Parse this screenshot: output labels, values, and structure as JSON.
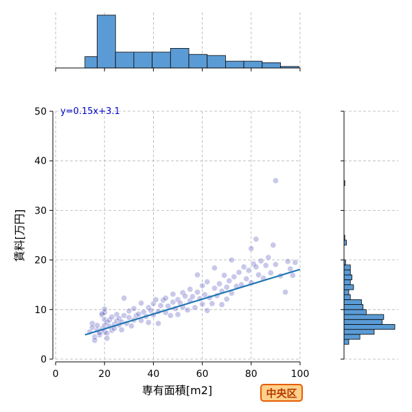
{
  "chart_data": {
    "type": "scatter",
    "xlabel": "専有面積[m2]",
    "ylabel": "賃料[万円]",
    "xlim": [
      0,
      100
    ],
    "ylim": [
      0,
      50
    ],
    "xticks": [
      0,
      20,
      40,
      60,
      80,
      100
    ],
    "yticks": [
      0,
      10,
      20,
      30,
      40,
      50
    ],
    "grid": true,
    "annotation": "y=0.15x+3.1",
    "annotation_color": "#0000cc",
    "badge": "中央区",
    "badge_colors": {
      "fill": "#ffd08a",
      "border": "#e65c00",
      "text": "#b33a00"
    },
    "point_color": "#3b3bb3",
    "regression": {
      "slope": 0.15,
      "intercept": 3.1,
      "x_range": [
        12,
        100
      ],
      "color": "#1f77b4"
    },
    "bar_color": "#5b9bd5",
    "points": [
      [
        14,
        5.5
      ],
      [
        15,
        7.2
      ],
      [
        15,
        6.4
      ],
      [
        16,
        4.5
      ],
      [
        16,
        3.8
      ],
      [
        17,
        5.9
      ],
      [
        17,
        6.8
      ],
      [
        18,
        4.9
      ],
      [
        18,
        5.3
      ],
      [
        19,
        6.1
      ],
      [
        19,
        8.9
      ],
      [
        19,
        9.2
      ],
      [
        20,
        5.5
      ],
      [
        20,
        6.8
      ],
      [
        20,
        8.0
      ],
      [
        20,
        9.4
      ],
      [
        20,
        10.1
      ],
      [
        21,
        7.4
      ],
      [
        21,
        5.2
      ],
      [
        21,
        4.2
      ],
      [
        22,
        6.6
      ],
      [
        22,
        7.9
      ],
      [
        23,
        5.8
      ],
      [
        23,
        8.5
      ],
      [
        24,
        7.0
      ],
      [
        24,
        6.2
      ],
      [
        25,
        7.7
      ],
      [
        25,
        9.0
      ],
      [
        26,
        6.9
      ],
      [
        26,
        8.2
      ],
      [
        27,
        7.5
      ],
      [
        27,
        5.9
      ],
      [
        28,
        8.8
      ],
      [
        28,
        12.3
      ],
      [
        29,
        7.2
      ],
      [
        30,
        8.4
      ],
      [
        30,
        9.7
      ],
      [
        31,
        6.7
      ],
      [
        32,
        7.9
      ],
      [
        32,
        10.2
      ],
      [
        33,
        8.8
      ],
      [
        34,
        9.1
      ],
      [
        35,
        7.8
      ],
      [
        35,
        11.3
      ],
      [
        36,
        9.5
      ],
      [
        37,
        8.6
      ],
      [
        38,
        10.4
      ],
      [
        38,
        7.4
      ],
      [
        39,
        9.8
      ],
      [
        40,
        11.2
      ],
      [
        40,
        8.9
      ],
      [
        41,
        12.0
      ],
      [
        42,
        9.6
      ],
      [
        42,
        7.2
      ],
      [
        43,
        10.8
      ],
      [
        44,
        11.9
      ],
      [
        45,
        9.4
      ],
      [
        45,
        12.3
      ],
      [
        46,
        10.7
      ],
      [
        47,
        8.8
      ],
      [
        48,
        11.5
      ],
      [
        48,
        13.1
      ],
      [
        49,
        10.2
      ],
      [
        50,
        12.0
      ],
      [
        50,
        9.0
      ],
      [
        51,
        11.3
      ],
      [
        52,
        13.4
      ],
      [
        52,
        10.5
      ],
      [
        53,
        12.7
      ],
      [
        54,
        9.9
      ],
      [
        55,
        11.8
      ],
      [
        55,
        14.1
      ],
      [
        56,
        12.6
      ],
      [
        57,
        10.4
      ],
      [
        58,
        13.5
      ],
      [
        58,
        17.0
      ],
      [
        59,
        12.2
      ],
      [
        60,
        11.1
      ],
      [
        60,
        14.8
      ],
      [
        61,
        13.0
      ],
      [
        62,
        9.8
      ],
      [
        62,
        15.6
      ],
      [
        63,
        12.4
      ],
      [
        64,
        11.2
      ],
      [
        65,
        14.3
      ],
      [
        65,
        18.4
      ],
      [
        66,
        12.8
      ],
      [
        67,
        15.2
      ],
      [
        68,
        13.7
      ],
      [
        68,
        11.0
      ],
      [
        69,
        16.9
      ],
      [
        70,
        14.5
      ],
      [
        70,
        12.1
      ],
      [
        71,
        15.8
      ],
      [
        72,
        13.3
      ],
      [
        72,
        20.0
      ],
      [
        73,
        16.6
      ],
      [
        74,
        14.7
      ],
      [
        75,
        17.5
      ],
      [
        76,
        15.0
      ],
      [
        77,
        18.6
      ],
      [
        78,
        16.2
      ],
      [
        79,
        17.9
      ],
      [
        80,
        22.3
      ],
      [
        80,
        15.4
      ],
      [
        81,
        19.2
      ],
      [
        82,
        24.2
      ],
      [
        82,
        18.6
      ],
      [
        83,
        17.0
      ],
      [
        84,
        19.8
      ],
      [
        85,
        16.3
      ],
      [
        86,
        18.9
      ],
      [
        87,
        20.5
      ],
      [
        88,
        17.4
      ],
      [
        89,
        23.0
      ],
      [
        90,
        36.0
      ],
      [
        90,
        19.1
      ],
      [
        92,
        16.8
      ],
      [
        94,
        13.5
      ],
      [
        95,
        19.7
      ],
      [
        96,
        18.2
      ],
      [
        97,
        16.9
      ],
      [
        98,
        19.5
      ]
    ],
    "x_histogram": {
      "bins": [
        [
          12,
          17
        ],
        [
          17,
          24.5
        ],
        [
          24.5,
          32
        ],
        [
          32,
          39.5
        ],
        [
          39.5,
          47
        ],
        [
          47,
          54.5
        ],
        [
          54.5,
          62
        ],
        [
          62,
          69.5
        ],
        [
          69.5,
          77
        ],
        [
          77,
          84.5
        ],
        [
          84.5,
          92
        ],
        [
          92,
          99.5
        ]
      ],
      "counts": [
        3,
        14,
        4.2,
        4.2,
        4.2,
        5.2,
        3.6,
        3.3,
        1.8,
        1.8,
        1.4,
        0.4
      ]
    },
    "y_histogram": {
      "bins": [
        [
          3,
          4
        ],
        [
          4,
          5
        ],
        [
          5,
          6
        ],
        [
          6,
          7
        ],
        [
          7,
          8
        ],
        [
          8,
          9
        ],
        [
          9,
          10
        ],
        [
          10,
          11
        ],
        [
          11,
          12
        ],
        [
          12,
          13
        ],
        [
          13,
          14
        ],
        [
          14,
          15
        ],
        [
          15,
          16
        ],
        [
          16,
          17
        ],
        [
          17,
          18
        ],
        [
          18,
          19
        ],
        [
          19,
          20
        ],
        [
          23,
          24
        ],
        [
          24,
          25
        ],
        [
          35,
          36
        ]
      ],
      "counts": [
        3,
        10,
        19,
        32,
        24,
        25,
        14,
        12,
        11,
        4,
        3,
        6,
        4,
        5,
        4,
        4,
        1,
        1.5,
        0.5,
        0.5
      ]
    }
  }
}
